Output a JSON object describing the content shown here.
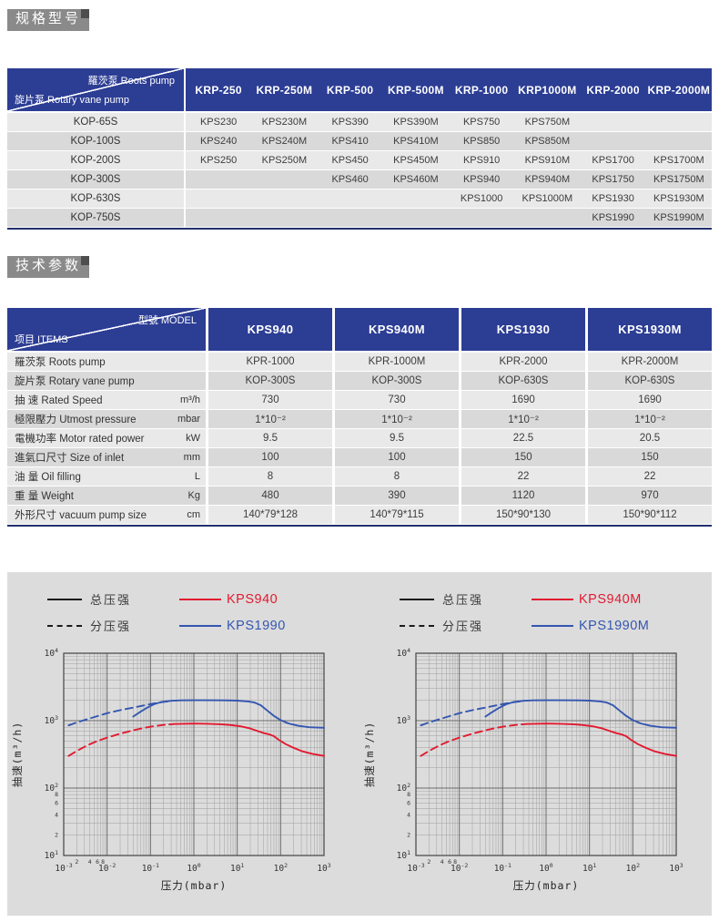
{
  "sections": {
    "spec_title": "规格型号",
    "tech_title": "技术参数"
  },
  "colors": {
    "header_blue": "#2c3d94",
    "row_light": "#e9e9e9",
    "row_dark": "#d9d9d9",
    "title_gray": "#8a8a8a",
    "panel_gray": "#dcdcdc",
    "table_bottom_border": "#23306e",
    "curve_red": "#e11a30",
    "curve_blue": "#3456b0"
  },
  "table1": {
    "corner_top": "羅茨泵 Roots pump",
    "corner_bottom": "旋片泵 Rotary vane pump",
    "columns": [
      "KRP-250",
      "KRP-250M",
      "KRP-500",
      "KRP-500M",
      "KRP-1000",
      "KRP1000M",
      "KRP-2000",
      "KRP-2000M"
    ],
    "rows": [
      {
        "label": "KOP-65S",
        "cells": [
          "KPS230",
          "KPS230M",
          "KPS390",
          "KPS390M",
          "KPS750",
          "KPS750M",
          "",
          ""
        ]
      },
      {
        "label": "KOP-100S",
        "cells": [
          "KPS240",
          "KPS240M",
          "KPS410",
          "KPS410M",
          "KPS850",
          "KPS850M",
          "",
          ""
        ]
      },
      {
        "label": "KOP-200S",
        "cells": [
          "KPS250",
          "KPS250M",
          "KPS450",
          "KPS450M",
          "KPS910",
          "KPS910M",
          "KPS1700",
          "KPS1700M"
        ]
      },
      {
        "label": "KOP-300S",
        "cells": [
          "",
          "",
          "KPS460",
          "KPS460M",
          "KPS940",
          "KPS940M",
          "KPS1750",
          "KPS1750M"
        ]
      },
      {
        "label": "KOP-630S",
        "cells": [
          "",
          "",
          "",
          "",
          "KPS1000",
          "KPS1000M",
          "KPS1930",
          "KPS1930M"
        ]
      },
      {
        "label": "KOP-750S",
        "cells": [
          "",
          "",
          "",
          "",
          "",
          "",
          "KPS1990",
          "KPS1990M"
        ]
      }
    ]
  },
  "table2": {
    "corner_top": "型號 MODEL",
    "corner_bottom": "项目 ITEMS",
    "columns": [
      "KPS940",
      "KPS940M",
      "KPS1930",
      "KPS1930M"
    ],
    "rows": [
      {
        "label": "羅茨泵 Roots pump",
        "unit": "",
        "cells": [
          "KPR-1000",
          "KPR-1000M",
          "KPR-2000",
          "KPR-2000M"
        ]
      },
      {
        "label": "旋片泵 Rotary vane pump",
        "unit": "",
        "cells": [
          "KOP-300S",
          "KOP-300S",
          "KOP-630S",
          "KOP-630S"
        ]
      },
      {
        "label": "抽 速 Rated Speed",
        "unit": "m³/h",
        "cells": [
          "730",
          "730",
          "1690",
          "1690"
        ]
      },
      {
        "label": "極限壓力 Utmost pressure",
        "unit": "mbar",
        "cells": [
          "1*10⁻²",
          "1*10⁻²",
          "1*10⁻²",
          "1*10⁻²"
        ]
      },
      {
        "label": "電機功率 Motor rated power",
        "unit": "kW",
        "cells": [
          "9.5",
          "9.5",
          "22.5",
          "20.5"
        ]
      },
      {
        "label": "進氣口尺寸 Size of inlet",
        "unit": "mm",
        "cells": [
          "100",
          "100",
          "150",
          "150"
        ]
      },
      {
        "label": "油 量 Oil filling",
        "unit": "L",
        "cells": [
          "8",
          "8",
          "22",
          "22"
        ]
      },
      {
        "label": "重 量 Weight",
        "unit": "Kg",
        "cells": [
          "480",
          "390",
          "1120",
          "970"
        ]
      },
      {
        "label": "外形尺寸 vacuum pump size",
        "unit": "cm",
        "cells": [
          "140*79*128",
          "140*79*115",
          "150*90*130",
          "150*90*112"
        ]
      }
    ]
  },
  "chart_data": [
    {
      "type": "line",
      "xlabel": "压力(mbar)",
      "ylabel": "抽速(m³/h)",
      "xscale": "log",
      "yscale": "log",
      "xlim": [
        0.001,
        1000
      ],
      "ylim": [
        10,
        10000
      ],
      "grid": true,
      "legend": {
        "position": "top",
        "line_styles": [
          {
            "style": "solid",
            "label": "总压强"
          },
          {
            "style": "dashed",
            "label": "分压强"
          }
        ],
        "series_labels": [
          {
            "label": "KPS940",
            "color": "#e11a30"
          },
          {
            "label": "KPS1990",
            "color": "#3456b0"
          }
        ]
      },
      "series": [
        {
          "name": "KPS1990 总压强",
          "color": "#3456b0",
          "style": "solid",
          "points": [
            [
              0.04,
              1150
            ],
            [
              0.055,
              1320
            ],
            [
              0.08,
              1530
            ],
            [
              0.12,
              1750
            ],
            [
              0.18,
              1890
            ],
            [
              0.3,
              1970
            ],
            [
              0.5,
              2000
            ],
            [
              1,
              2010
            ],
            [
              2,
              2010
            ],
            [
              5,
              2000
            ],
            [
              10,
              1980
            ],
            [
              18,
              1930
            ],
            [
              25,
              1860
            ],
            [
              35,
              1690
            ],
            [
              50,
              1400
            ],
            [
              70,
              1180
            ],
            [
              100,
              1020
            ],
            [
              150,
              910
            ],
            [
              250,
              840
            ],
            [
              450,
              800
            ],
            [
              1000,
              785
            ]
          ]
        },
        {
          "name": "KPS1990 分压强",
          "color": "#3456b0",
          "style": "dashed",
          "points": [
            [
              0.0013,
              850
            ],
            [
              0.002,
              940
            ],
            [
              0.0035,
              1050
            ],
            [
              0.006,
              1170
            ],
            [
              0.01,
              1290
            ],
            [
              0.02,
              1430
            ],
            [
              0.04,
              1560
            ],
            [
              0.07,
              1680
            ],
            [
              0.12,
              1800
            ],
            [
              0.2,
              1900
            ],
            [
              0.3,
              1955
            ]
          ]
        },
        {
          "name": "KPS940 总压强",
          "color": "#e11a30",
          "style": "solid",
          "points": [
            [
              0.35,
              890
            ],
            [
              0.6,
              900
            ],
            [
              1,
              905
            ],
            [
              2,
              900
            ],
            [
              4,
              885
            ],
            [
              7,
              860
            ],
            [
              12,
              825
            ],
            [
              20,
              765
            ],
            [
              30,
              700
            ],
            [
              42,
              650
            ],
            [
              55,
              625
            ],
            [
              70,
              590
            ],
            [
              90,
              520
            ],
            [
              130,
              450
            ],
            [
              200,
              395
            ],
            [
              320,
              350
            ],
            [
              550,
              320
            ],
            [
              1000,
              300
            ]
          ]
        },
        {
          "name": "KPS940 分压强",
          "color": "#e11a30",
          "style": "dashed",
          "points": [
            [
              0.0013,
              300
            ],
            [
              0.002,
              355
            ],
            [
              0.0035,
              430
            ],
            [
              0.006,
              500
            ],
            [
              0.01,
              560
            ],
            [
              0.02,
              640
            ],
            [
              0.04,
              720
            ],
            [
              0.07,
              780
            ],
            [
              0.12,
              830
            ],
            [
              0.2,
              865
            ],
            [
              0.35,
              890
            ]
          ]
        }
      ]
    },
    {
      "type": "line",
      "xlabel": "压力(mbar)",
      "ylabel": "抽速(m³/h)",
      "xscale": "log",
      "yscale": "log",
      "xlim": [
        0.001,
        1000
      ],
      "ylim": [
        10,
        10000
      ],
      "grid": true,
      "legend": {
        "position": "top",
        "line_styles": [
          {
            "style": "solid",
            "label": "总压强"
          },
          {
            "style": "dashed",
            "label": "分压强"
          }
        ],
        "series_labels": [
          {
            "label": "KPS940M",
            "color": "#e11a30"
          },
          {
            "label": "KPS1990M",
            "color": "#3456b0"
          }
        ]
      },
      "series": [
        {
          "name": "KPS1990M 总压强",
          "color": "#3456b0",
          "style": "solid",
          "points": [
            [
              0.04,
              1150
            ],
            [
              0.055,
              1320
            ],
            [
              0.08,
              1530
            ],
            [
              0.12,
              1750
            ],
            [
              0.18,
              1890
            ],
            [
              0.3,
              1970
            ],
            [
              0.5,
              2000
            ],
            [
              1,
              2010
            ],
            [
              2,
              2010
            ],
            [
              5,
              2000
            ],
            [
              10,
              1980
            ],
            [
              18,
              1930
            ],
            [
              25,
              1860
            ],
            [
              35,
              1690
            ],
            [
              50,
              1400
            ],
            [
              70,
              1180
            ],
            [
              100,
              1020
            ],
            [
              150,
              910
            ],
            [
              250,
              840
            ],
            [
              450,
              800
            ],
            [
              1000,
              785
            ]
          ]
        },
        {
          "name": "KPS1990M 分压强",
          "color": "#3456b0",
          "style": "dashed",
          "points": [
            [
              0.0013,
              850
            ],
            [
              0.002,
              940
            ],
            [
              0.0035,
              1050
            ],
            [
              0.006,
              1170
            ],
            [
              0.01,
              1290
            ],
            [
              0.02,
              1430
            ],
            [
              0.04,
              1560
            ],
            [
              0.07,
              1680
            ],
            [
              0.12,
              1800
            ],
            [
              0.2,
              1900
            ],
            [
              0.3,
              1955
            ]
          ]
        },
        {
          "name": "KPS940M 总压强",
          "color": "#e11a30",
          "style": "solid",
          "points": [
            [
              0.35,
              890
            ],
            [
              0.6,
              900
            ],
            [
              1,
              905
            ],
            [
              2,
              900
            ],
            [
              4,
              885
            ],
            [
              7,
              860
            ],
            [
              12,
              825
            ],
            [
              20,
              765
            ],
            [
              30,
              700
            ],
            [
              42,
              650
            ],
            [
              55,
              625
            ],
            [
              70,
              590
            ],
            [
              90,
              520
            ],
            [
              130,
              450
            ],
            [
              200,
              395
            ],
            [
              320,
              350
            ],
            [
              550,
              320
            ],
            [
              1000,
              300
            ]
          ]
        },
        {
          "name": "KPS940M 分压强",
          "color": "#e11a30",
          "style": "dashed",
          "points": [
            [
              0.0013,
              300
            ],
            [
              0.002,
              355
            ],
            [
              0.0035,
              430
            ],
            [
              0.006,
              500
            ],
            [
              0.01,
              560
            ],
            [
              0.02,
              640
            ],
            [
              0.04,
              720
            ],
            [
              0.07,
              780
            ],
            [
              0.12,
              830
            ],
            [
              0.2,
              865
            ],
            [
              0.35,
              890
            ]
          ]
        }
      ]
    }
  ]
}
